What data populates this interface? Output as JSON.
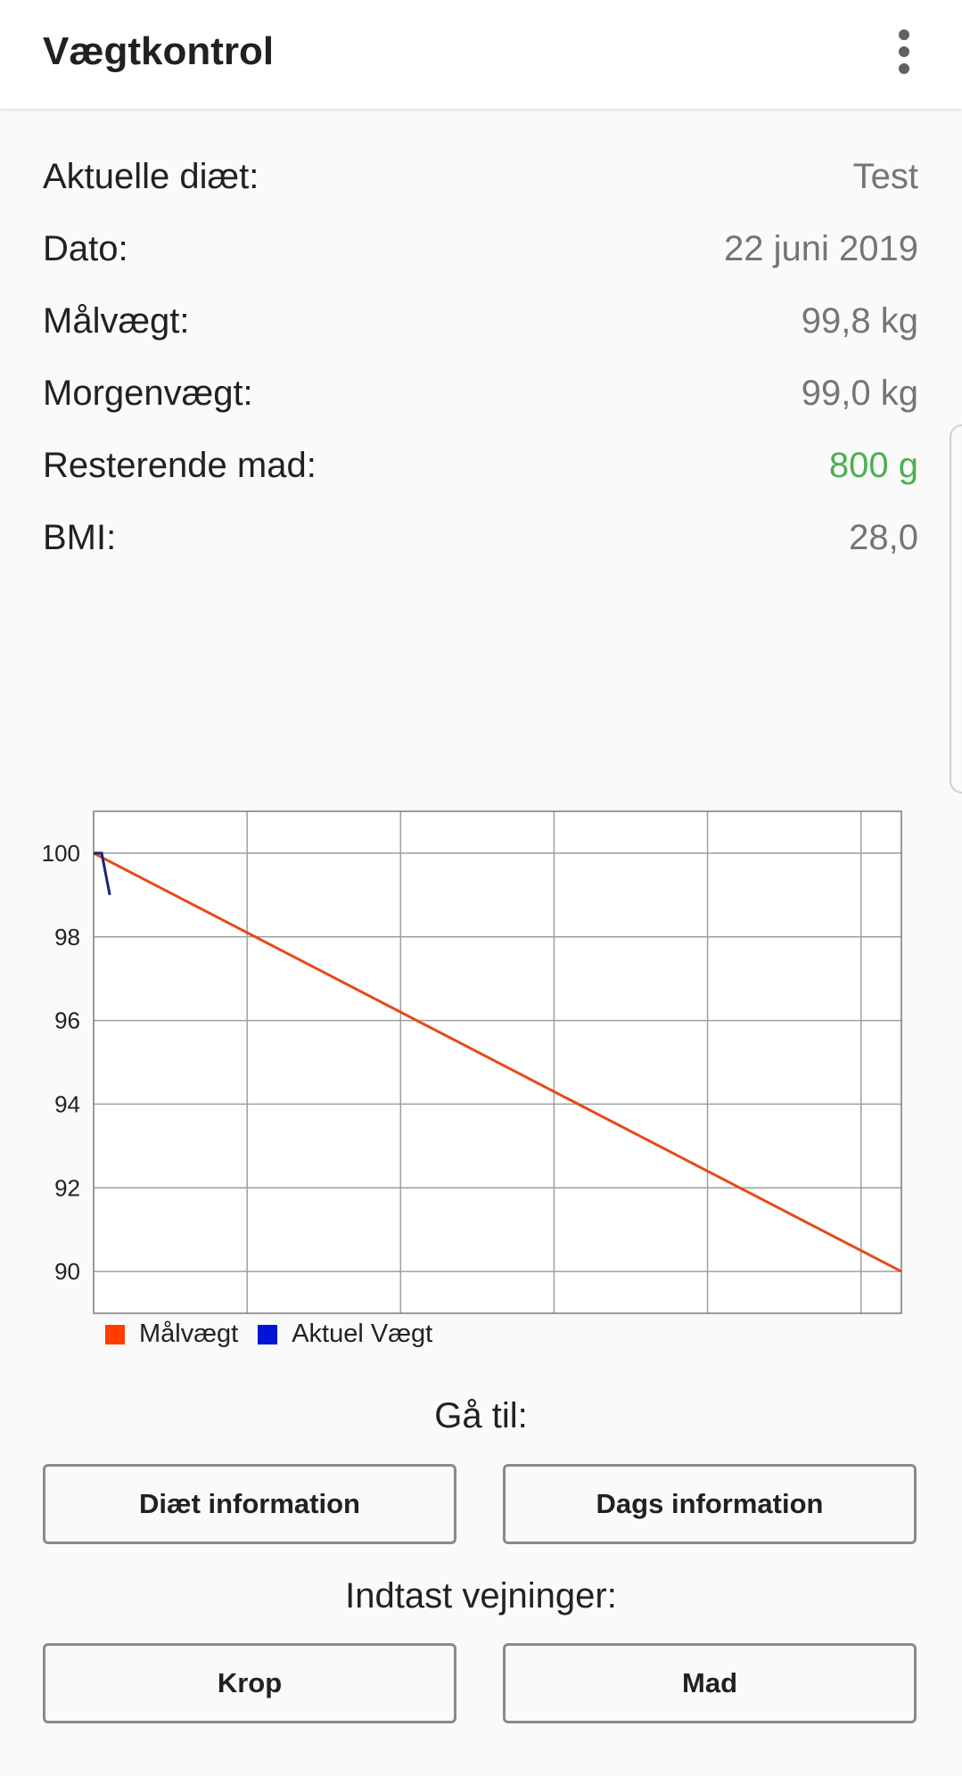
{
  "appbar": {
    "title": "Vægtkontrol",
    "menu_icon": "more-vert-icon"
  },
  "info": [
    {
      "label": "Aktuelle diæt:",
      "value": "Test",
      "color": "#757575"
    },
    {
      "label": "Dato:",
      "value": "22 juni 2019",
      "color": "#757575"
    },
    {
      "label": "Målvægt:",
      "value": "99,8 kg",
      "color": "#757575"
    },
    {
      "label": "Morgenvægt:",
      "value": "99,0 kg",
      "color": "#757575"
    },
    {
      "label": "Resterende mad:",
      "value": "800 g",
      "color": "#4caf50"
    },
    {
      "label": "BMI:",
      "value": "28,0",
      "color": "#757575"
    }
  ],
  "chart_data": {
    "type": "line",
    "title": "",
    "xlabel": "",
    "ylabel": "",
    "ylim": [
      89,
      101
    ],
    "xlim": [
      0,
      100
    ],
    "yticks": [
      "100",
      "98",
      "96",
      "94",
      "92",
      "90"
    ],
    "grid": true,
    "legend_position": "bottom-left",
    "series": [
      {
        "name": "Målvægt",
        "color": "#e64a19",
        "x": [
          0,
          100
        ],
        "y": [
          100,
          90
        ]
      },
      {
        "name": "Aktuel Vægt",
        "color": "#1a237e",
        "x": [
          0,
          1,
          2
        ],
        "y": [
          100,
          100,
          99
        ]
      }
    ],
    "legend": [
      {
        "label": "Målvægt",
        "color": "#ff3d00"
      },
      {
        "label": "Aktuel Vægt",
        "color": "#0014d8"
      }
    ]
  },
  "goto": {
    "label": "Gå til:",
    "diet_button": "Diæt information",
    "day_button": "Dags information"
  },
  "enter": {
    "label": "Indtast vejninger:",
    "body_button": "Krop",
    "food_button": "Mad"
  }
}
